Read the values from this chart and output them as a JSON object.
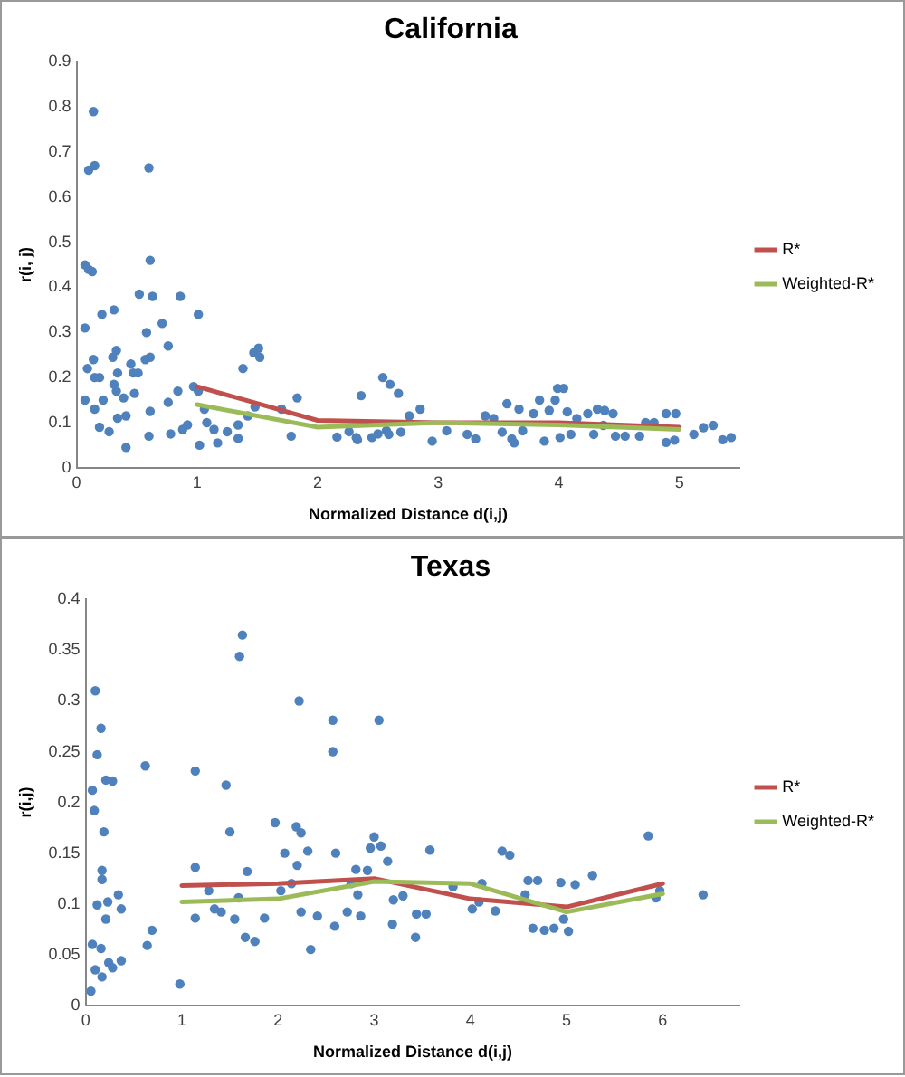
{
  "chart_data": [
    {
      "type": "scatter",
      "title": "California",
      "xlabel": "Normalized Distance d(i,j)",
      "ylabel": "r(i, j)",
      "xlim": [
        0,
        5.5
      ],
      "xticks": [
        0,
        1,
        2,
        3,
        4,
        5
      ],
      "ylim": [
        0,
        0.9
      ],
      "yticks": [
        0,
        0.1,
        0.2,
        0.3,
        0.4,
        0.5,
        0.6,
        0.7,
        0.8,
        0.9
      ],
      "grid": false,
      "legend": "right",
      "series": [
        {
          "type": "scatter",
          "marker": "circle",
          "color": "#4f81bd",
          "x": [
            0.07,
            0.1,
            0.13,
            0.1,
            0.15,
            0.14,
            0.07,
            0.07,
            0.09,
            0.14,
            0.15,
            0.19,
            0.15,
            0.19,
            0.21,
            0.22,
            0.27,
            0.31,
            0.3,
            0.33,
            0.31,
            0.34,
            0.33,
            0.34,
            0.41,
            0.39,
            0.45,
            0.47,
            0.41,
            0.48,
            0.52,
            0.51,
            0.57,
            0.61,
            0.58,
            0.6,
            0.61,
            0.63,
            0.61,
            0.6,
            0.71,
            0.76,
            0.76,
            0.78,
            0.84,
            0.86,
            0.88,
            0.92,
            0.97,
            1.01,
            1.01,
            1.02,
            1.06,
            1.08,
            1.14,
            1.17,
            1.25,
            1.34,
            1.34,
            1.38,
            1.42,
            1.47,
            1.51,
            1.52,
            1.48,
            1.7,
            1.78,
            1.83,
            2.16,
            2.26,
            2.32,
            2.36,
            2.5,
            2.57,
            2.54,
            2.6,
            2.67,
            2.76,
            2.33,
            2.45,
            2.59,
            2.69,
            2.85,
            2.95,
            3.07,
            3.24,
            3.31,
            3.39,
            3.46,
            3.53,
            3.57,
            3.61,
            3.63,
            3.67,
            3.7,
            3.79,
            3.84,
            3.88,
            3.92,
            3.97,
            3.99,
            4.04,
            4.01,
            4.07,
            4.1,
            4.15,
            4.24,
            4.29,
            4.32,
            4.38,
            4.45,
            4.37,
            4.47,
            4.55,
            4.67,
            4.72,
            4.79,
            4.89,
            4.97,
            4.89,
            4.96,
            5.12,
            5.2,
            5.28,
            5.36,
            5.43
          ],
          "values": [
            0.45,
            0.44,
            0.435,
            0.66,
            0.67,
            0.79,
            0.31,
            0.15,
            0.22,
            0.24,
            0.2,
            0.2,
            0.13,
            0.09,
            0.34,
            0.15,
            0.08,
            0.35,
            0.245,
            0.26,
            0.185,
            0.21,
            0.17,
            0.11,
            0.045,
            0.155,
            0.23,
            0.21,
            0.115,
            0.165,
            0.385,
            0.21,
            0.24,
            0.245,
            0.3,
            0.665,
            0.46,
            0.38,
            0.125,
            0.07,
            0.32,
            0.27,
            0.145,
            0.075,
            0.17,
            0.38,
            0.085,
            0.095,
            0.18,
            0.34,
            0.17,
            0.05,
            0.13,
            0.1,
            0.085,
            0.055,
            0.08,
            0.095,
            0.065,
            0.22,
            0.115,
            0.255,
            0.265,
            0.245,
            0.135,
            0.13,
            0.07,
            0.155,
            0.068,
            0.08,
            0.067,
            0.16,
            0.075,
            0.082,
            0.2,
            0.185,
            0.165,
            0.115,
            0.062,
            0.067,
            0.074,
            0.079,
            0.13,
            0.059,
            0.082,
            0.074,
            0.064,
            0.115,
            0.109,
            0.079,
            0.142,
            0.064,
            0.055,
            0.13,
            0.082,
            0.12,
            0.15,
            0.059,
            0.127,
            0.15,
            0.176,
            0.176,
            0.067,
            0.124,
            0.074,
            0.109,
            0.12,
            0.074,
            0.13,
            0.127,
            0.12,
            0.094,
            0.07,
            0.07,
            0.07,
            0.1,
            0.1,
            0.12,
            0.12,
            0.056,
            0.061,
            0.074,
            0.089,
            0.094,
            0.062,
            0.067
          ]
        },
        {
          "type": "line",
          "marker": "none",
          "name": "R*",
          "color": "#c0504d",
          "x": [
            1,
            2,
            3,
            4,
            5
          ],
          "values": [
            0.18,
            0.105,
            0.1,
            0.1,
            0.09
          ]
        },
        {
          "type": "line",
          "marker": "none",
          "name": "Weighted-R*",
          "color": "#9bbb59",
          "x": [
            1,
            2,
            3,
            4,
            5
          ],
          "values": [
            0.14,
            0.09,
            0.1,
            0.095,
            0.085
          ]
        }
      ]
    },
    {
      "type": "scatter",
      "title": "Texas",
      "xlabel": "Normalized Distance d(i,j)",
      "ylabel": "r(i,j)",
      "xlim": [
        0,
        6.8
      ],
      "xticks": [
        0,
        1,
        2,
        3,
        4,
        5,
        6
      ],
      "ylim": [
        0,
        0.4
      ],
      "yticks": [
        0,
        0.05,
        0.1,
        0.15,
        0.2,
        0.25,
        0.3,
        0.35,
        0.4
      ],
      "grid": false,
      "legend": "right",
      "series": [
        {
          "type": "scatter",
          "marker": "circle",
          "color": "#4f81bd",
          "x": [
            0.055,
            0.1,
            0.16,
            0.12,
            0.07,
            0.09,
            0.21,
            0.28,
            0.19,
            0.17,
            0.17,
            0.12,
            0.23,
            0.34,
            0.37,
            0.21,
            0.07,
            0.16,
            0.1,
            0.17,
            0.24,
            0.37,
            0.28,
            0.62,
            0.69,
            0.64,
            0.98,
            1.14,
            1.14,
            1.14,
            1.46,
            1.5,
            1.6,
            1.63,
            1.68,
            1.97,
            2.22,
            2.19,
            2.24,
            2.07,
            2.2,
            2.31,
            2.57,
            2.57,
            2.6,
            2.34,
            1.28,
            1.41,
            1.55,
            1.66,
            1.76,
            1.86,
            2.03,
            2.14,
            2.24,
            2.41,
            2.59,
            2.72,
            2.83,
            1.59,
            1.34,
            3.05,
            3.0,
            2.96,
            3.07,
            3.14,
            2.93,
            2.81,
            2.76,
            2.86,
            3.2,
            3.3,
            3.19,
            3.43,
            3.44,
            3.54,
            3.58,
            3.82,
            4.02,
            4.09,
            4.12,
            4.26,
            4.33,
            4.41,
            4.57,
            4.6,
            4.7,
            4.65,
            4.77,
            4.87,
            4.97,
            5.02,
            4.94,
            5.09,
            5.27,
            5.85,
            5.93,
            5.97,
            6.42
          ],
          "values": [
            0.014,
            0.31,
            0.273,
            0.247,
            0.212,
            0.192,
            0.222,
            0.221,
            0.171,
            0.133,
            0.124,
            0.099,
            0.102,
            0.109,
            0.095,
            0.085,
            0.06,
            0.056,
            0.035,
            0.028,
            0.042,
            0.044,
            0.037,
            0.236,
            0.074,
            0.059,
            0.021,
            0.231,
            0.136,
            0.086,
            0.217,
            0.171,
            0.344,
            0.365,
            0.132,
            0.18,
            0.3,
            0.176,
            0.17,
            0.15,
            0.138,
            0.152,
            0.281,
            0.25,
            0.15,
            0.055,
            0.113,
            0.092,
            0.085,
            0.067,
            0.063,
            0.086,
            0.113,
            0.12,
            0.092,
            0.088,
            0.078,
            0.092,
            0.109,
            0.106,
            0.095,
            0.281,
            0.166,
            0.155,
            0.157,
            0.142,
            0.133,
            0.134,
            0.12,
            0.088,
            0.104,
            0.108,
            0.08,
            0.067,
            0.09,
            0.09,
            0.153,
            0.117,
            0.095,
            0.102,
            0.12,
            0.093,
            0.152,
            0.148,
            0.109,
            0.123,
            0.123,
            0.076,
            0.074,
            0.076,
            0.085,
            0.073,
            0.121,
            0.119,
            0.128,
            0.167,
            0.106,
            0.113,
            0.109
          ]
        },
        {
          "type": "line",
          "marker": "none",
          "name": "R*",
          "color": "#c0504d",
          "x": [
            1,
            2,
            3,
            4,
            5,
            6
          ],
          "values": [
            0.118,
            0.12,
            0.125,
            0.105,
            0.097,
            0.12
          ]
        },
        {
          "type": "line",
          "marker": "none",
          "name": "Weighted-R*",
          "color": "#9bbb59",
          "x": [
            1,
            2,
            3,
            4,
            5,
            6
          ],
          "values": [
            0.102,
            0.105,
            0.122,
            0.12,
            0.092,
            0.11
          ]
        }
      ]
    }
  ]
}
